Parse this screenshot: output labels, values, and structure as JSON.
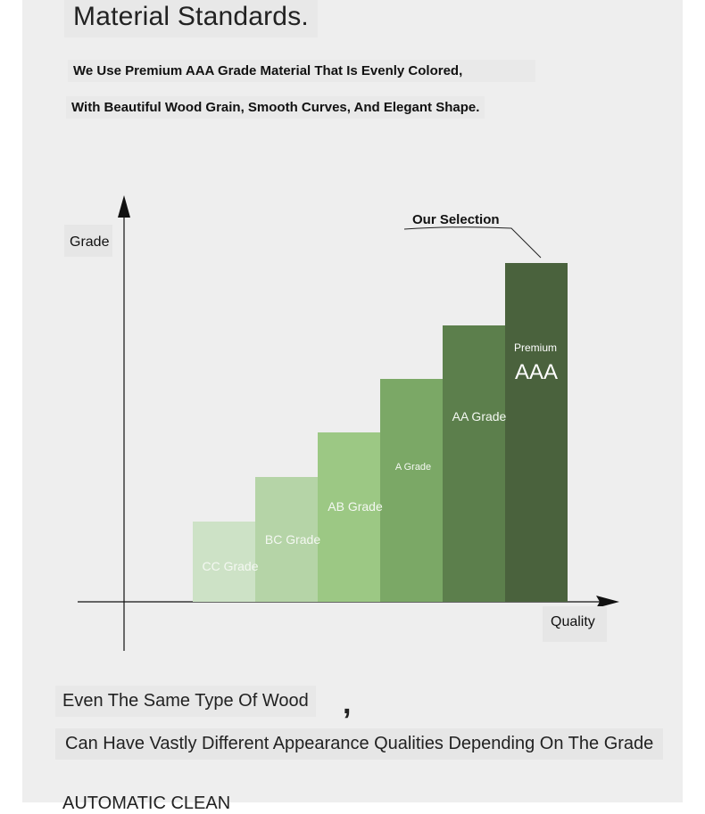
{
  "heading": "Material Standards.",
  "subtitle_line1": "We Use Premium AAA Grade Material That Is Evenly Colored,",
  "subtitle_line2": "With Beautiful Wood Grain, Smooth Curves, And Elegant Shape.",
  "chart_data": {
    "type": "bar",
    "ylabel": "Grade",
    "xlabel": "Quality",
    "annotation": "Our Selection",
    "categories": [
      "CC Grade",
      "BC Grade",
      "AB Grade",
      "A Grade",
      "AA Grade",
      "AAA"
    ],
    "values": [
      1,
      2,
      3,
      4,
      5,
      6
    ],
    "premium_label": "Premium",
    "colors": [
      "#cde2c6",
      "#b5d4a7",
      "#9cc884",
      "#7ba866",
      "#5c7f4c",
      "#4a623d"
    ],
    "grid": false
  },
  "footer": {
    "line1": "Even The Same Type Of Wood",
    "comma": ",",
    "line2": "Can Have Vastly Different Appearance Qualities Depending On The Grade",
    "line3": "AUTOMATIC CLEAN"
  }
}
